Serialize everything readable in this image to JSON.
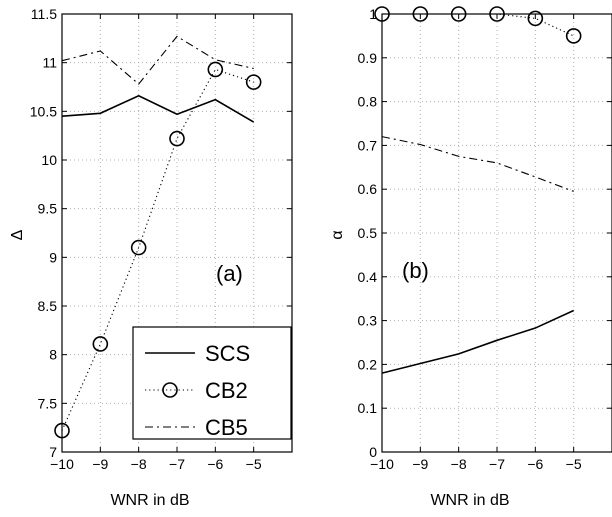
{
  "chart_data": [
    {
      "type": "line",
      "ylabel": "Δ",
      "xlabel": "WNR in dB",
      "annotation": "(a)",
      "xlim": [
        -10,
        -4
      ],
      "ylim": [
        7,
        11.5
      ],
      "xticks": [
        "−10",
        "−9",
        "−8",
        "−7",
        "−6",
        "−5"
      ],
      "yticks": [
        "7",
        "7.5",
        "8",
        "8.5",
        "9",
        "9.5",
        "10",
        "10.5",
        "11",
        "11.5"
      ],
      "x": [
        -10,
        -9,
        -8,
        -7,
        -6,
        -5
      ],
      "legend": {
        "position": "bottom-right",
        "entries": [
          "SCS",
          "CB2",
          "CB5"
        ]
      },
      "series": [
        {
          "name": "SCS",
          "style": "solid",
          "marker": "none",
          "values": [
            10.45,
            10.48,
            10.66,
            10.47,
            10.62,
            10.39
          ]
        },
        {
          "name": "CB2",
          "style": "dotted",
          "marker": "circle",
          "values": [
            7.22,
            8.11,
            9.1,
            10.22,
            10.93,
            10.8
          ]
        },
        {
          "name": "CB5",
          "style": "dashdot",
          "marker": "none",
          "values": [
            11.02,
            11.12,
            10.78,
            11.27,
            11.03,
            10.94
          ]
        }
      ]
    },
    {
      "type": "line",
      "ylabel": "α",
      "xlabel": "WNR in dB",
      "annotation": "(b)",
      "xlim": [
        -10,
        -4
      ],
      "ylim": [
        0,
        1
      ],
      "xticks": [
        "−10",
        "−9",
        "−8",
        "−7",
        "−6",
        "−5"
      ],
      "yticks": [
        "0",
        "0.1",
        "0.2",
        "0.3",
        "0.4",
        "0.5",
        "0.6",
        "0.7",
        "0.8",
        "0.9",
        "1"
      ],
      "x": [
        -10,
        -9,
        -8,
        -7,
        -6,
        -5
      ],
      "series": [
        {
          "name": "SCS",
          "style": "solid",
          "marker": "none",
          "values": [
            0.18,
            0.202,
            0.224,
            0.255,
            0.283,
            0.323
          ]
        },
        {
          "name": "CB2",
          "style": "dotted",
          "marker": "circle",
          "values": [
            1.0,
            1.0,
            1.0,
            1.0,
            0.99,
            0.95
          ]
        },
        {
          "name": "CB5",
          "style": "dashdot",
          "marker": "none",
          "values": [
            0.72,
            0.702,
            0.675,
            0.66,
            0.628,
            0.595
          ]
        }
      ]
    }
  ]
}
